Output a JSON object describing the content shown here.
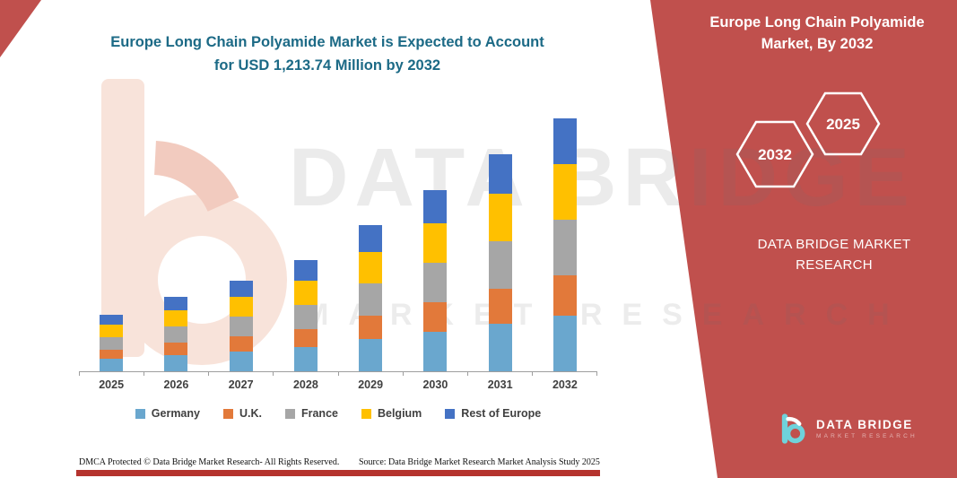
{
  "page": {
    "title_line1": "Europe Long Chain Polyamide Market is Expected to Account",
    "title_line2": "for USD 1,213.74 Million by 2032"
  },
  "right_panel": {
    "title": "Europe Long Chain Polyamide Market, By 2032",
    "badge_back_year": "2032",
    "badge_front_year": "2025",
    "brand_text": "DATA BRIDGE MARKET RESEARCH",
    "logo_title": "DATA BRIDGE",
    "logo_subtitle": "MARKET RESEARCH"
  },
  "watermark": {
    "line1": "DATA BRIDGE",
    "line2": "MARKET RESEARCH"
  },
  "footer": {
    "dmca": "DMCA Protected © Data Bridge Market Research-  All Rights Reserved.",
    "source": "Source: Data Bridge Market Research  Market Analysis Study 2025"
  },
  "colors": {
    "accent_red": "#C0504D",
    "title_teal": "#1C6A86"
  },
  "chart_data": {
    "type": "bar",
    "stacked": true,
    "title": "Europe Long Chain Polyamide Market is Expected to Account for USD 1,213.74 Million by 2032",
    "xlabel": "",
    "ylabel": "",
    "value_axis_visible": false,
    "legend_position": "bottom",
    "grid": false,
    "categories": [
      "2025",
      "2026",
      "2027",
      "2028",
      "2029",
      "2030",
      "2031",
      "2032"
    ],
    "series": [
      {
        "name": "Germany",
        "color": "#6AA7CE",
        "values": [
          60,
          79,
          96,
          117,
          154,
          191,
          229,
          267
        ]
      },
      {
        "name": "U.K.",
        "color": "#E2793A",
        "values": [
          44,
          57,
          70,
          85,
          112,
          139,
          166,
          194
        ]
      },
      {
        "name": "France",
        "color": "#A6A6A6",
        "values": [
          60,
          79,
          96,
          117,
          154,
          191,
          229,
          267
        ]
      },
      {
        "name": "Belgium",
        "color": "#FFC000",
        "values": [
          60,
          79,
          96,
          117,
          154,
          191,
          229,
          267
        ]
      },
      {
        "name": "Rest of Europe",
        "color": "#4472C4",
        "values": [
          49,
          64,
          78,
          96,
          126,
          157,
          187,
          218.74
        ]
      }
    ],
    "units_note": "values estimated from bar heights, USD Million",
    "total_2032": 1213.74
  }
}
